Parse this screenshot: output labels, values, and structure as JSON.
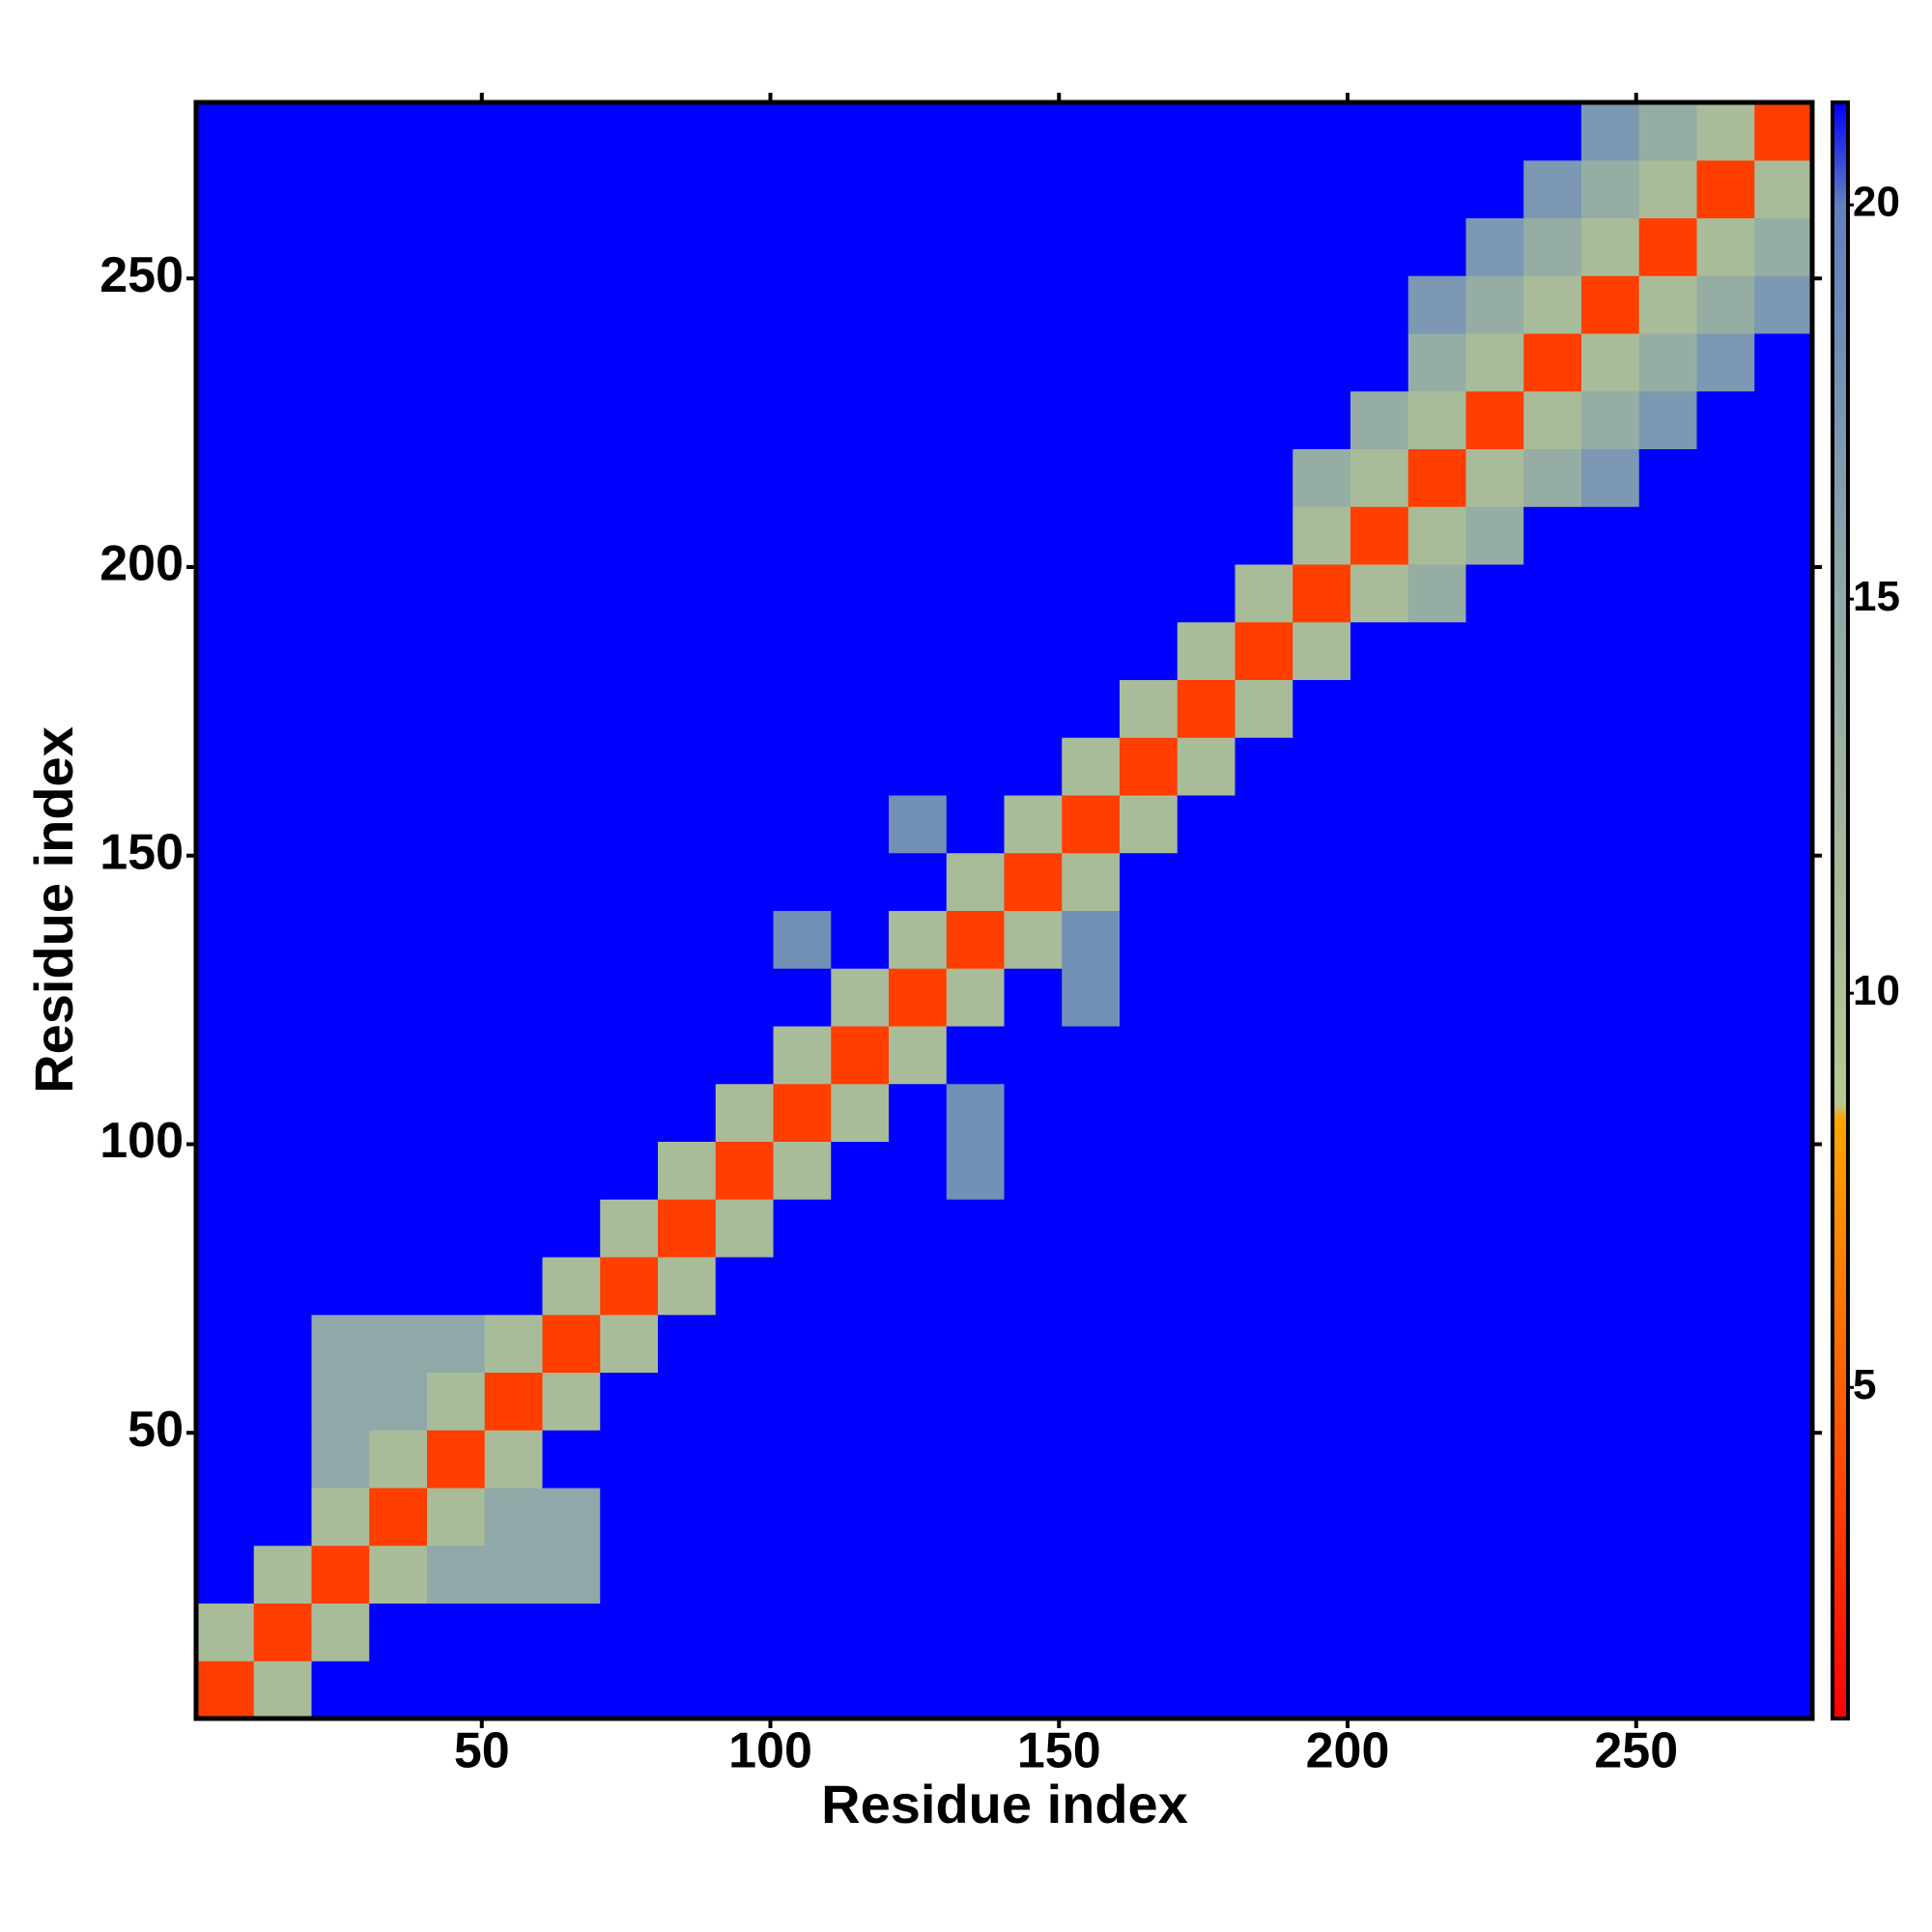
{
  "chart_data": {
    "type": "heatmap",
    "xlabel": "Residue index",
    "ylabel": "Residue index",
    "xbins": [
      0.5,
      10.5,
      20.5,
      30.5,
      40.5,
      50.5,
      60.5,
      70.5,
      80.5,
      90.5,
      100.5,
      110.5,
      120.5,
      130.5,
      140.5,
      150.5,
      160.5,
      170.5,
      180.5,
      190.5,
      200.5,
      210.5,
      220.5,
      230.5,
      240.5,
      250.5,
      260.5,
      270.5,
      280.5
    ],
    "ybins": [
      0.5,
      10.5,
      20.5,
      30.5,
      40.5,
      50.5,
      60.5,
      70.5,
      80.5,
      90.5,
      100.5,
      110.5,
      120.5,
      130.5,
      140.5,
      150.5,
      160.5,
      170.5,
      180.5,
      190.5,
      200.5,
      210.5,
      220.5,
      230.5,
      240.5,
      250.5,
      260.5,
      270.5,
      280.5
    ],
    "xlim": [
      0.5,
      280.5
    ],
    "ylim": [
      0.5,
      280.5
    ],
    "xticks": [
      50,
      100,
      150,
      200,
      250
    ],
    "yticks": [
      50,
      100,
      150,
      200,
      250
    ],
    "clim": [
      0.8,
      21.3
    ],
    "cticks": [
      5,
      10,
      15,
      20
    ],
    "colorscale": [
      [
        0.8,
        "#ff0000"
      ],
      [
        5,
        "#ff6000"
      ],
      [
        8.4,
        "#ffa500"
      ],
      [
        8.6,
        "#b8c890"
      ],
      [
        15,
        "#90a8a8"
      ],
      [
        20,
        "#6080c0"
      ],
      [
        21.3,
        "#0000ff"
      ]
    ],
    "z": [
      [
        3.5,
        11,
        21.3,
        21.3,
        21.3,
        21.3,
        21.3,
        21.3,
        21.3,
        21.3,
        21.3,
        21.3,
        21.3,
        21.3,
        21.3,
        21.3,
        21.3,
        21.3,
        21.3,
        21.3,
        21.3,
        21.3,
        21.3,
        21.3,
        21.3,
        21.3,
        21.3,
        21.3
      ],
      [
        11,
        3.5,
        11,
        21.3,
        21.3,
        21.3,
        21.3,
        21.3,
        21.3,
        21.3,
        21.3,
        21.3,
        21.3,
        21.3,
        21.3,
        21.3,
        21.3,
        21.3,
        21.3,
        21.3,
        21.3,
        21.3,
        21.3,
        21.3,
        21.3,
        21.3,
        21.3,
        21.3
      ],
      [
        21.3,
        11,
        3.5,
        11,
        15,
        15,
        15,
        21.3,
        21.3,
        21.3,
        21.3,
        21.3,
        21.3,
        21.3,
        21.3,
        21.3,
        21.3,
        21.3,
        21.3,
        21.3,
        21.3,
        21.3,
        21.3,
        21.3,
        21.3,
        21.3,
        21.3,
        21.3
      ],
      [
        21.3,
        21.3,
        11,
        3.5,
        11,
        15,
        15,
        21.3,
        21.3,
        21.3,
        21.3,
        21.3,
        21.3,
        21.3,
        21.3,
        21.3,
        21.3,
        21.3,
        21.3,
        21.3,
        21.3,
        21.3,
        21.3,
        21.3,
        21.3,
        21.3,
        21.3,
        21.3
      ],
      [
        21.3,
        21.3,
        15,
        11,
        3.5,
        11,
        21.3,
        21.3,
        21.3,
        21.3,
        21.3,
        21.3,
        21.3,
        21.3,
        21.3,
        21.3,
        21.3,
        21.3,
        21.3,
        21.3,
        21.3,
        21.3,
        21.3,
        21.3,
        21.3,
        21.3,
        21.3,
        21.3
      ],
      [
        21.3,
        21.3,
        15,
        15,
        11,
        3.5,
        11,
        21.3,
        21.3,
        21.3,
        21.3,
        21.3,
        21.3,
        21.3,
        21.3,
        21.3,
        21.3,
        21.3,
        21.3,
        21.3,
        21.3,
        21.3,
        21.3,
        21.3,
        21.3,
        21.3,
        21.3,
        21.3
      ],
      [
        21.3,
        21.3,
        15,
        15,
        15,
        11,
        3.5,
        11,
        21.3,
        21.3,
        21.3,
        21.3,
        21.3,
        21.3,
        21.3,
        21.3,
        21.3,
        21.3,
        21.3,
        21.3,
        21.3,
        21.3,
        21.3,
        21.3,
        21.3,
        21.3,
        21.3,
        21.3
      ],
      [
        21.3,
        21.3,
        21.3,
        21.3,
        21.3,
        21.3,
        11,
        3.5,
        11,
        21.3,
        21.3,
        21.3,
        21.3,
        21.3,
        21.3,
        21.3,
        21.3,
        21.3,
        21.3,
        21.3,
        21.3,
        21.3,
        21.3,
        21.3,
        21.3,
        21.3,
        21.3,
        21.3
      ],
      [
        21.3,
        21.3,
        21.3,
        21.3,
        21.3,
        21.3,
        21.3,
        11,
        3.5,
        11,
        21.3,
        21.3,
        21.3,
        21.3,
        21.3,
        21.3,
        21.3,
        21.3,
        21.3,
        21.3,
        21.3,
        21.3,
        21.3,
        21.3,
        21.3,
        21.3,
        21.3,
        21.3
      ],
      [
        21.3,
        21.3,
        21.3,
        21.3,
        21.3,
        21.3,
        21.3,
        21.3,
        11,
        3.5,
        11,
        21.3,
        21.3,
        18,
        21.3,
        21.3,
        21.3,
        21.3,
        21.3,
        21.3,
        21.3,
        21.3,
        21.3,
        21.3,
        21.3,
        21.3,
        21.3,
        21.3
      ],
      [
        21.3,
        21.3,
        21.3,
        21.3,
        21.3,
        21.3,
        21.3,
        21.3,
        21.3,
        11,
        3.5,
        11,
        21.3,
        18,
        21.3,
        21.3,
        21.3,
        21.3,
        21.3,
        21.3,
        21.3,
        21.3,
        21.3,
        21.3,
        21.3,
        21.3,
        21.3,
        21.3
      ],
      [
        21.3,
        21.3,
        21.3,
        21.3,
        21.3,
        21.3,
        21.3,
        21.3,
        21.3,
        21.3,
        11,
        3.5,
        11,
        21.3,
        21.3,
        21.3,
        21.3,
        21.3,
        21.3,
        21.3,
        21.3,
        21.3,
        21.3,
        21.3,
        21.3,
        21.3,
        21.3,
        21.3
      ],
      [
        21.3,
        21.3,
        21.3,
        21.3,
        21.3,
        21.3,
        21.3,
        21.3,
        21.3,
        21.3,
        21.3,
        11,
        3.5,
        11,
        21.3,
        18,
        21.3,
        21.3,
        21.3,
        21.3,
        21.3,
        21.3,
        21.3,
        21.3,
        21.3,
        21.3,
        21.3,
        21.3
      ],
      [
        21.3,
        21.3,
        21.3,
        21.3,
        21.3,
        21.3,
        21.3,
        21.3,
        21.3,
        21.3,
        18,
        21.3,
        11,
        3.5,
        11,
        18,
        21.3,
        21.3,
        21.3,
        21.3,
        21.3,
        21.3,
        21.3,
        21.3,
        21.3,
        21.3,
        21.3,
        21.3
      ],
      [
        21.3,
        21.3,
        21.3,
        21.3,
        21.3,
        21.3,
        21.3,
        21.3,
        21.3,
        21.3,
        21.3,
        21.3,
        21.3,
        11,
        3.5,
        11,
        21.3,
        21.3,
        21.3,
        21.3,
        21.3,
        21.3,
        21.3,
        21.3,
        21.3,
        21.3,
        21.3,
        21.3
      ],
      [
        21.3,
        21.3,
        21.3,
        21.3,
        21.3,
        21.3,
        21.3,
        21.3,
        21.3,
        21.3,
        21.3,
        21.3,
        18,
        21.3,
        11,
        3.5,
        11,
        21.3,
        21.3,
        21.3,
        21.3,
        21.3,
        21.3,
        21.3,
        21.3,
        21.3,
        21.3,
        21.3
      ],
      [
        21.3,
        21.3,
        21.3,
        21.3,
        21.3,
        21.3,
        21.3,
        21.3,
        21.3,
        21.3,
        21.3,
        21.3,
        21.3,
        21.3,
        21.3,
        11,
        3.5,
        11,
        21.3,
        21.3,
        21.3,
        21.3,
        21.3,
        21.3,
        21.3,
        21.3,
        21.3,
        21.3
      ],
      [
        21.3,
        21.3,
        21.3,
        21.3,
        21.3,
        21.3,
        21.3,
        21.3,
        21.3,
        21.3,
        21.3,
        21.3,
        21.3,
        21.3,
        21.3,
        21.3,
        11,
        3.5,
        11,
        21.3,
        21.3,
        21.3,
        21.3,
        21.3,
        21.3,
        21.3,
        21.3,
        21.3
      ],
      [
        21.3,
        21.3,
        21.3,
        21.3,
        21.3,
        21.3,
        21.3,
        21.3,
        21.3,
        21.3,
        21.3,
        21.3,
        21.3,
        21.3,
        21.3,
        21.3,
        21.3,
        11,
        3.5,
        11,
        21.3,
        21.3,
        21.3,
        21.3,
        21.3,
        21.3,
        21.3,
        21.3
      ],
      [
        21.3,
        21.3,
        21.3,
        21.3,
        21.3,
        21.3,
        21.3,
        21.3,
        21.3,
        21.3,
        21.3,
        21.3,
        21.3,
        21.3,
        21.3,
        21.3,
        21.3,
        21.3,
        11,
        3.5,
        11,
        14,
        21.3,
        21.3,
        21.3,
        21.3,
        21.3,
        21.3
      ],
      [
        21.3,
        21.3,
        21.3,
        21.3,
        21.3,
        21.3,
        21.3,
        21.3,
        21.3,
        21.3,
        21.3,
        21.3,
        21.3,
        21.3,
        21.3,
        21.3,
        21.3,
        21.3,
        21.3,
        11,
        3.5,
        11,
        14,
        21.3,
        21.3,
        21.3,
        21.3,
        21.3
      ],
      [
        21.3,
        21.3,
        21.3,
        21.3,
        21.3,
        21.3,
        21.3,
        21.3,
        21.3,
        21.3,
        21.3,
        21.3,
        21.3,
        21.3,
        21.3,
        21.3,
        21.3,
        21.3,
        21.3,
        14,
        11,
        3.5,
        11,
        14,
        17,
        21.3,
        21.3,
        21.3
      ],
      [
        21.3,
        21.3,
        21.3,
        21.3,
        21.3,
        21.3,
        21.3,
        21.3,
        21.3,
        21.3,
        21.3,
        21.3,
        21.3,
        21.3,
        21.3,
        21.3,
        21.3,
        21.3,
        21.3,
        21.3,
        14,
        11,
        3.5,
        11,
        14,
        17,
        21.3,
        21.3
      ],
      [
        21.3,
        21.3,
        21.3,
        21.3,
        21.3,
        21.3,
        21.3,
        21.3,
        21.3,
        21.3,
        21.3,
        21.3,
        21.3,
        21.3,
        21.3,
        21.3,
        21.3,
        21.3,
        21.3,
        21.3,
        21.3,
        14,
        11,
        3.5,
        11,
        14,
        17,
        21.3
      ],
      [
        21.3,
        21.3,
        21.3,
        21.3,
        21.3,
        21.3,
        21.3,
        21.3,
        21.3,
        21.3,
        21.3,
        21.3,
        21.3,
        21.3,
        21.3,
        21.3,
        21.3,
        21.3,
        21.3,
        21.3,
        21.3,
        17,
        14,
        11,
        3.5,
        11,
        14,
        17
      ],
      [
        21.3,
        21.3,
        21.3,
        21.3,
        21.3,
        21.3,
        21.3,
        21.3,
        21.3,
        21.3,
        21.3,
        21.3,
        21.3,
        21.3,
        21.3,
        21.3,
        21.3,
        21.3,
        21.3,
        21.3,
        21.3,
        21.3,
        17,
        14,
        11,
        3.5,
        11,
        14
      ],
      [
        21.3,
        21.3,
        21.3,
        21.3,
        21.3,
        21.3,
        21.3,
        21.3,
        21.3,
        21.3,
        21.3,
        21.3,
        21.3,
        21.3,
        21.3,
        21.3,
        21.3,
        21.3,
        21.3,
        21.3,
        21.3,
        21.3,
        21.3,
        17,
        14,
        11,
        3.5,
        11
      ],
      [
        21.3,
        21.3,
        21.3,
        21.3,
        21.3,
        21.3,
        21.3,
        21.3,
        21.3,
        21.3,
        21.3,
        21.3,
        21.3,
        21.3,
        21.3,
        21.3,
        21.3,
        21.3,
        21.3,
        21.3,
        21.3,
        21.3,
        21.3,
        21.3,
        17,
        14,
        11,
        3.5
      ]
    ]
  }
}
